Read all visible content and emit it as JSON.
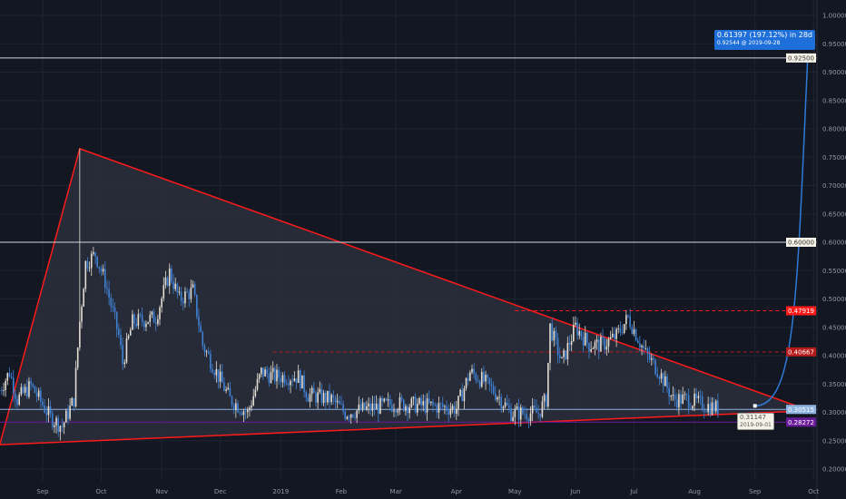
{
  "chart_data": {
    "type": "candlestick",
    "y_axis": {
      "range": [
        0.18,
        1.02
      ],
      "ticks": [
        "1.00000",
        "0.95000",
        "0.90000",
        "0.85000",
        "0.80000",
        "0.75000",
        "0.70000",
        "0.65000",
        "0.60000",
        "0.55000",
        "0.50000",
        "0.45000",
        "0.40000",
        "0.35000",
        "0.30000",
        "0.25000",
        "0.20000"
      ],
      "scale": "linear",
      "position": "right"
    },
    "x_axis": {
      "range": [
        "2018-08-09",
        "2019-10-03"
      ],
      "ticks": [
        {
          "label": "Sep",
          "date": "2018-09-01"
        },
        {
          "label": "Oct",
          "date": "2018-10-01"
        },
        {
          "label": "Nov",
          "date": "2018-11-01"
        },
        {
          "label": "Dec",
          "date": "2018-12-01"
        },
        {
          "label": "2019",
          "date": "2019-01-01"
        },
        {
          "label": "Feb",
          "date": "2019-02-01"
        },
        {
          "label": "Mar",
          "date": "2019-03-01"
        },
        {
          "label": "Apr",
          "date": "2019-04-01"
        },
        {
          "label": "May",
          "date": "2019-05-01"
        },
        {
          "label": "Jun",
          "date": "2019-06-01"
        },
        {
          "label": "Jul",
          "date": "2019-07-01"
        },
        {
          "label": "Aug",
          "date": "2019-08-01"
        },
        {
          "label": "Sep",
          "date": "2019-09-01"
        },
        {
          "label": "Oct",
          "date": "2019-10-01"
        }
      ]
    },
    "grid": true,
    "colors": {
      "background": "#131722",
      "grid": "#1f2433",
      "up": "#e3ddd3",
      "down": "#3f82d6",
      "trendline": "#ff1a1a",
      "triangle_fill": "#2c2f3b",
      "projection": "#2f7ad9",
      "current_price": "#8fb4e0",
      "purple_level": "#6a1b9a"
    },
    "close_path": [
      [
        "2018-08-10",
        0.339
      ],
      [
        "2018-08-15",
        0.371
      ],
      [
        "2018-08-19",
        0.323
      ],
      [
        "2018-08-26",
        0.347
      ],
      [
        "2018-09-05",
        0.291
      ],
      [
        "2018-09-11",
        0.275
      ],
      [
        "2018-09-17",
        0.323
      ],
      [
        "2018-09-20",
        0.46
      ],
      [
        "2018-09-23",
        0.563
      ],
      [
        "2018-09-28",
        0.579
      ],
      [
        "2018-10-03",
        0.531
      ],
      [
        "2018-10-10",
        0.435
      ],
      [
        "2018-10-12",
        0.387
      ],
      [
        "2018-10-17",
        0.459
      ],
      [
        "2018-10-29",
        0.467
      ],
      [
        "2018-11-05",
        0.547
      ],
      [
        "2018-11-10",
        0.499
      ],
      [
        "2018-11-17",
        0.515
      ],
      [
        "2018-11-22",
        0.419
      ],
      [
        "2018-11-29",
        0.371
      ],
      [
        "2018-12-06",
        0.323
      ],
      [
        "2018-12-15",
        0.299
      ],
      [
        "2018-12-22",
        0.371
      ],
      [
        "2018-12-29",
        0.363
      ],
      [
        "2019-01-10",
        0.363
      ],
      [
        "2019-01-15",
        0.331
      ],
      [
        "2019-01-27",
        0.323
      ],
      [
        "2019-02-03",
        0.299
      ],
      [
        "2019-02-15",
        0.307
      ],
      [
        "2019-03-01",
        0.315
      ],
      [
        "2019-03-20",
        0.311
      ],
      [
        "2019-04-01",
        0.307
      ],
      [
        "2019-04-08",
        0.371
      ],
      [
        "2019-04-15",
        0.355
      ],
      [
        "2019-04-22",
        0.331
      ],
      [
        "2019-04-29",
        0.299
      ],
      [
        "2019-05-13",
        0.299
      ],
      [
        "2019-05-17",
        0.323
      ],
      [
        "2019-05-19",
        0.451
      ],
      [
        "2019-05-25",
        0.387
      ],
      [
        "2019-06-01",
        0.451
      ],
      [
        "2019-06-08",
        0.419
      ],
      [
        "2019-06-15",
        0.419
      ],
      [
        "2019-06-22",
        0.435
      ],
      [
        "2019-06-28",
        0.467
      ],
      [
        "2019-07-07",
        0.403
      ],
      [
        "2019-07-14",
        0.371
      ],
      [
        "2019-07-21",
        0.323
      ],
      [
        "2019-07-28",
        0.323
      ],
      [
        "2019-08-04",
        0.315
      ],
      [
        "2019-08-13",
        0.307
      ]
    ],
    "spike": {
      "date": "2018-09-20",
      "high": 0.765
    },
    "drawings": {
      "triangle": [
        [
          "2018-08-10",
          0.243
        ],
        [
          "2018-09-20",
          0.765
        ],
        [
          "2019-09-29",
          0.303
        ]
      ],
      "horizontal_levels": [
        {
          "price": 0.925,
          "label": "0.92500",
          "style": "solid",
          "color": "#d1d4dc",
          "from": "2018-08-09"
        },
        {
          "price": 0.6,
          "label": "0.60000",
          "style": "solid",
          "color": "#d1d4dc",
          "from": "2018-08-09"
        },
        {
          "price": 0.47919,
          "label": "0.47919",
          "style": "dashed",
          "color": "#ff1a1a",
          "from": "2019-05-01"
        },
        {
          "price": 0.40667,
          "label": "0.40667",
          "style": "dashed",
          "color": "#b71c1c",
          "from": "2018-12-28"
        },
        {
          "price": 0.30515,
          "label": "0.30515",
          "style": "solid",
          "color": "#8fb4e0",
          "from": "2018-08-09"
        },
        {
          "price": 0.28272,
          "label": "0.28272",
          "style": "solid",
          "color": "#6a1b9a",
          "from": "2018-08-09"
        }
      ],
      "projection": {
        "start": [
          "2019-09-01",
          0.31147
        ],
        "end": [
          "2019-09-28",
          0.92544
        ],
        "start_label": {
          "price": "0.31147",
          "date": "2019-09-01"
        },
        "tooltip": {
          "line1": "0.61397 (197.12%) in 28d",
          "line2": "0.92544 @ 2019-09-28"
        }
      }
    }
  }
}
